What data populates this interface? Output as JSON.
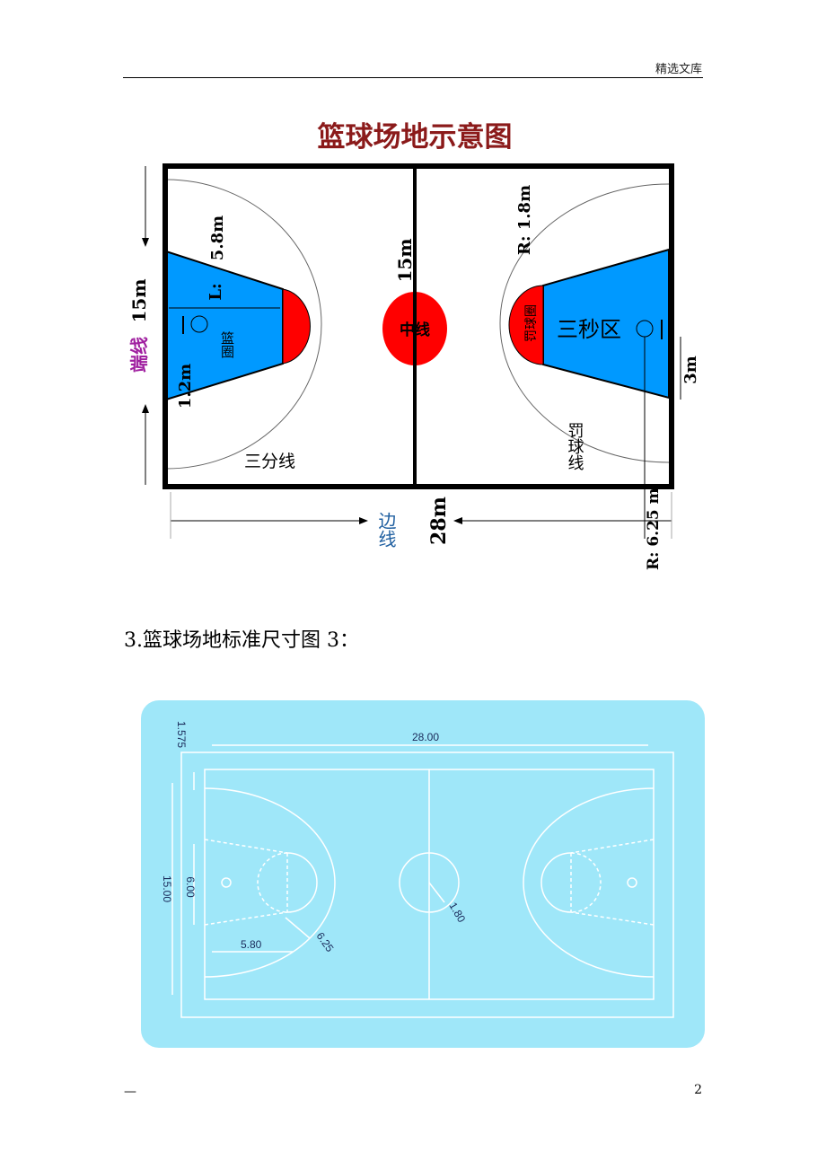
{
  "header": {
    "text": "精选文库"
  },
  "figure1": {
    "title": "篮球场地示意图",
    "end_line_label": "端线",
    "end_line_length": "15m",
    "center_line_length": "15m",
    "center_circle_label": "中线",
    "key_length_label": "5.8m",
    "l_label": "L:",
    "basket_label": "篮圈",
    "basket_offset": "1.2m",
    "free_throw_circle_label": "罚球圈",
    "free_throw_radius": "R:  1.8m",
    "three_second_label": "三秒区",
    "free_throw_line_label": "罚球线",
    "three_point_label": "三分线",
    "key_width": "3m",
    "side_line_label": "边线",
    "side_line_length": "28m",
    "three_point_radius": "R:  6.25  m",
    "colors": {
      "key": "#0099ff",
      "circle": "#ff0000",
      "title": "#8b1a1a",
      "end_line_label": "#a020a0",
      "side_line_label": "#1f5fa0"
    }
  },
  "caption": "3.篮球场地标准尺寸图 3：",
  "figure2": {
    "width": "28.00",
    "height": "15.00",
    "margin": "1.575",
    "key_width": "6.00",
    "free_throw_dist": "5.80",
    "three_point_radius": "6.25",
    "center_radius": "1.80",
    "colors": {
      "background": "#9fe7f9",
      "lines": "#ffffff"
    }
  },
  "footer": {
    "dash": "—",
    "page_number": "2"
  }
}
